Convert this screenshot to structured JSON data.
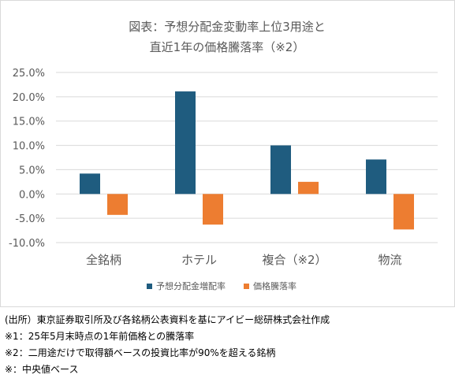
{
  "chart_data": {
    "type": "bar",
    "title_lines": [
      "図表：予想分配金変動率上位3用途と",
      "直近1年の価格騰落率（※2）"
    ],
    "categories": [
      "全銘柄",
      "ホテル",
      "複合（※2）",
      "物流"
    ],
    "series": [
      {
        "name": "予想分配金増配率",
        "color": "#1F5C7F",
        "values": [
          4.2,
          21.1,
          10.0,
          7.1
        ]
      },
      {
        "name": "価格騰落率",
        "color": "#ED7D31",
        "values": [
          -4.3,
          -6.3,
          2.5,
          -7.3
        ]
      }
    ],
    "yticks": [
      "25.0%",
      "20.0%",
      "15.0%",
      "10.0%",
      "5.0%",
      "0.0%",
      "-5.0%",
      "-10.0%"
    ],
    "ylim": [
      -10,
      25
    ],
    "ytick_step": 5,
    "grid": true,
    "legend_position": "bottom",
    "colors": {
      "title": "#595959",
      "tick": "#595959",
      "category": "#595959",
      "legend": "#595959",
      "gridline": "#D9D9D9",
      "zero_line": "#D9D9D9",
      "border": "#D9D9D9"
    }
  },
  "notes": [
    "(出所）東京証券取引所及び各銘柄公表資料を基にアイビー総研株式会社作成",
    "※1：25年5月末時点の1年前価格との騰落率",
    "※2：二用途だけで取得額ベースの投資比率が90%を超える銘柄",
    "※：中央値ベース"
  ]
}
